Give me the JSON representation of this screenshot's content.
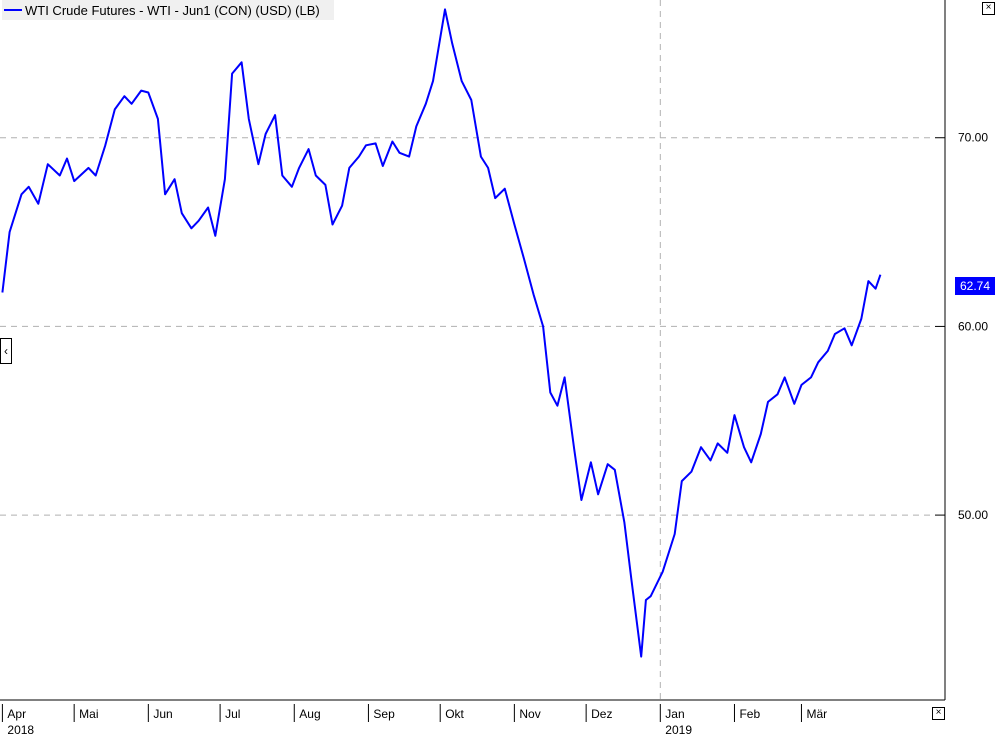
{
  "legend": {
    "label": "WTI Crude Futures - WTI - Jun1 (CON) (USD) (LB)"
  },
  "last_price": "62.74",
  "colors": {
    "line": "#0000ff",
    "grid": "#b0b0b0",
    "background": "#ffffff"
  },
  "icons": {
    "close": "close-x-icon",
    "scroll": "scroll-left-icon"
  },
  "chart_data": {
    "type": "line",
    "series": [
      {
        "name": "WTI Crude Futures - WTI - Jun1 (CON) (USD) (LB)"
      }
    ],
    "y_ticks": [
      "70.00",
      "60.00",
      "50.00"
    ],
    "ylim": [
      40.2,
      77.3
    ],
    "x_tick_labels": [
      {
        "month": "Apr",
        "year": "2018"
      },
      {
        "month": "Mai"
      },
      {
        "month": "Jun"
      },
      {
        "month": "Jul"
      },
      {
        "month": "Aug"
      },
      {
        "month": "Sep"
      },
      {
        "month": "Okt"
      },
      {
        "month": "Nov"
      },
      {
        "month": "Dez"
      },
      {
        "month": "Jan",
        "year": "2019"
      },
      {
        "month": "Feb"
      },
      {
        "month": "Mär"
      }
    ],
    "x_tick_dates": [
      "2018-04-01",
      "2018-05-01",
      "2018-06-01",
      "2018-07-01",
      "2018-08-01",
      "2018-09-01",
      "2018-10-01",
      "2018-11-01",
      "2018-12-01",
      "2019-01-01",
      "2019-02-01",
      "2019-03-01"
    ],
    "points": [
      [
        "2018-04-01",
        61.8
      ],
      [
        "2018-04-04",
        65.0
      ],
      [
        "2018-04-09",
        67.0
      ],
      [
        "2018-04-12",
        67.4
      ],
      [
        "2018-04-16",
        66.5
      ],
      [
        "2018-04-20",
        68.6
      ],
      [
        "2018-04-25",
        68.0
      ],
      [
        "2018-04-28",
        68.9
      ],
      [
        "2018-05-01",
        67.7
      ],
      [
        "2018-05-07",
        68.4
      ],
      [
        "2018-05-10",
        68.0
      ],
      [
        "2018-05-14",
        69.6
      ],
      [
        "2018-05-18",
        71.5
      ],
      [
        "2018-05-22",
        72.2
      ],
      [
        "2018-05-25",
        71.8
      ],
      [
        "2018-05-29",
        72.5
      ],
      [
        "2018-06-01",
        72.4
      ],
      [
        "2018-06-05",
        71.0
      ],
      [
        "2018-06-08",
        67.0
      ],
      [
        "2018-06-12",
        67.8
      ],
      [
        "2018-06-15",
        66.0
      ],
      [
        "2018-06-19",
        65.2
      ],
      [
        "2018-06-22",
        65.6
      ],
      [
        "2018-06-26",
        66.3
      ],
      [
        "2018-06-29",
        64.8
      ],
      [
        "2018-07-03",
        67.8
      ],
      [
        "2018-07-06",
        73.4
      ],
      [
        "2018-07-10",
        74.0
      ],
      [
        "2018-07-13",
        71.0
      ],
      [
        "2018-07-17",
        68.6
      ],
      [
        "2018-07-20",
        70.2
      ],
      [
        "2018-07-24",
        71.2
      ],
      [
        "2018-07-27",
        68.0
      ],
      [
        "2018-07-31",
        67.4
      ],
      [
        "2018-08-03",
        68.4
      ],
      [
        "2018-08-07",
        69.4
      ],
      [
        "2018-08-10",
        68.0
      ],
      [
        "2018-08-14",
        67.5
      ],
      [
        "2018-08-17",
        65.4
      ],
      [
        "2018-08-21",
        66.4
      ],
      [
        "2018-08-24",
        68.4
      ],
      [
        "2018-08-28",
        69.0
      ],
      [
        "2018-08-31",
        69.6
      ],
      [
        "2018-09-04",
        69.7
      ],
      [
        "2018-09-07",
        68.5
      ],
      [
        "2018-09-11",
        69.8
      ],
      [
        "2018-09-14",
        69.2
      ],
      [
        "2018-09-18",
        69.0
      ],
      [
        "2018-09-21",
        70.6
      ],
      [
        "2018-09-25",
        71.8
      ],
      [
        "2018-09-28",
        73.0
      ],
      [
        "2018-10-03",
        76.8
      ],
      [
        "2018-10-06",
        75.0
      ],
      [
        "2018-10-10",
        73.0
      ],
      [
        "2018-10-14",
        72.0
      ],
      [
        "2018-10-18",
        69.0
      ],
      [
        "2018-10-21",
        68.4
      ],
      [
        "2018-10-24",
        66.8
      ],
      [
        "2018-10-28",
        67.3
      ],
      [
        "2018-11-01",
        65.4
      ],
      [
        "2018-11-05",
        63.6
      ],
      [
        "2018-11-09",
        61.7
      ],
      [
        "2018-11-13",
        60.0
      ],
      [
        "2018-11-16",
        56.5
      ],
      [
        "2018-11-19",
        55.8
      ],
      [
        "2018-11-22",
        57.3
      ],
      [
        "2018-11-26",
        53.5
      ],
      [
        "2018-11-29",
        50.8
      ],
      [
        "2018-12-03",
        52.8
      ],
      [
        "2018-12-06",
        51.1
      ],
      [
        "2018-12-10",
        52.7
      ],
      [
        "2018-12-13",
        52.4
      ],
      [
        "2018-12-17",
        49.6
      ],
      [
        "2018-12-20",
        46.5
      ],
      [
        "2018-12-24",
        42.5
      ],
      [
        "2018-12-26",
        45.5
      ],
      [
        "2018-12-28",
        45.7
      ],
      [
        "2019-01-02",
        47.0
      ],
      [
        "2019-01-07",
        49.0
      ],
      [
        "2019-01-10",
        51.8
      ],
      [
        "2019-01-14",
        52.3
      ],
      [
        "2019-01-18",
        53.6
      ],
      [
        "2019-01-22",
        52.9
      ],
      [
        "2019-01-25",
        53.8
      ],
      [
        "2019-01-29",
        53.3
      ],
      [
        "2019-02-01",
        55.3
      ],
      [
        "2019-02-05",
        53.6
      ],
      [
        "2019-02-08",
        52.8
      ],
      [
        "2019-02-12",
        54.3
      ],
      [
        "2019-02-15",
        56.0
      ],
      [
        "2019-02-19",
        56.4
      ],
      [
        "2019-02-22",
        57.3
      ],
      [
        "2019-02-26",
        55.9
      ],
      [
        "2019-03-01",
        56.9
      ],
      [
        "2019-03-05",
        57.3
      ],
      [
        "2019-03-08",
        58.1
      ],
      [
        "2019-03-12",
        58.7
      ],
      [
        "2019-03-15",
        59.6
      ],
      [
        "2019-03-19",
        59.9
      ],
      [
        "2019-03-22",
        59.0
      ],
      [
        "2019-03-26",
        60.4
      ],
      [
        "2019-03-29",
        62.4
      ],
      [
        "2019-04-01",
        62.0
      ],
      [
        "2019-04-03",
        62.74
      ]
    ]
  }
}
